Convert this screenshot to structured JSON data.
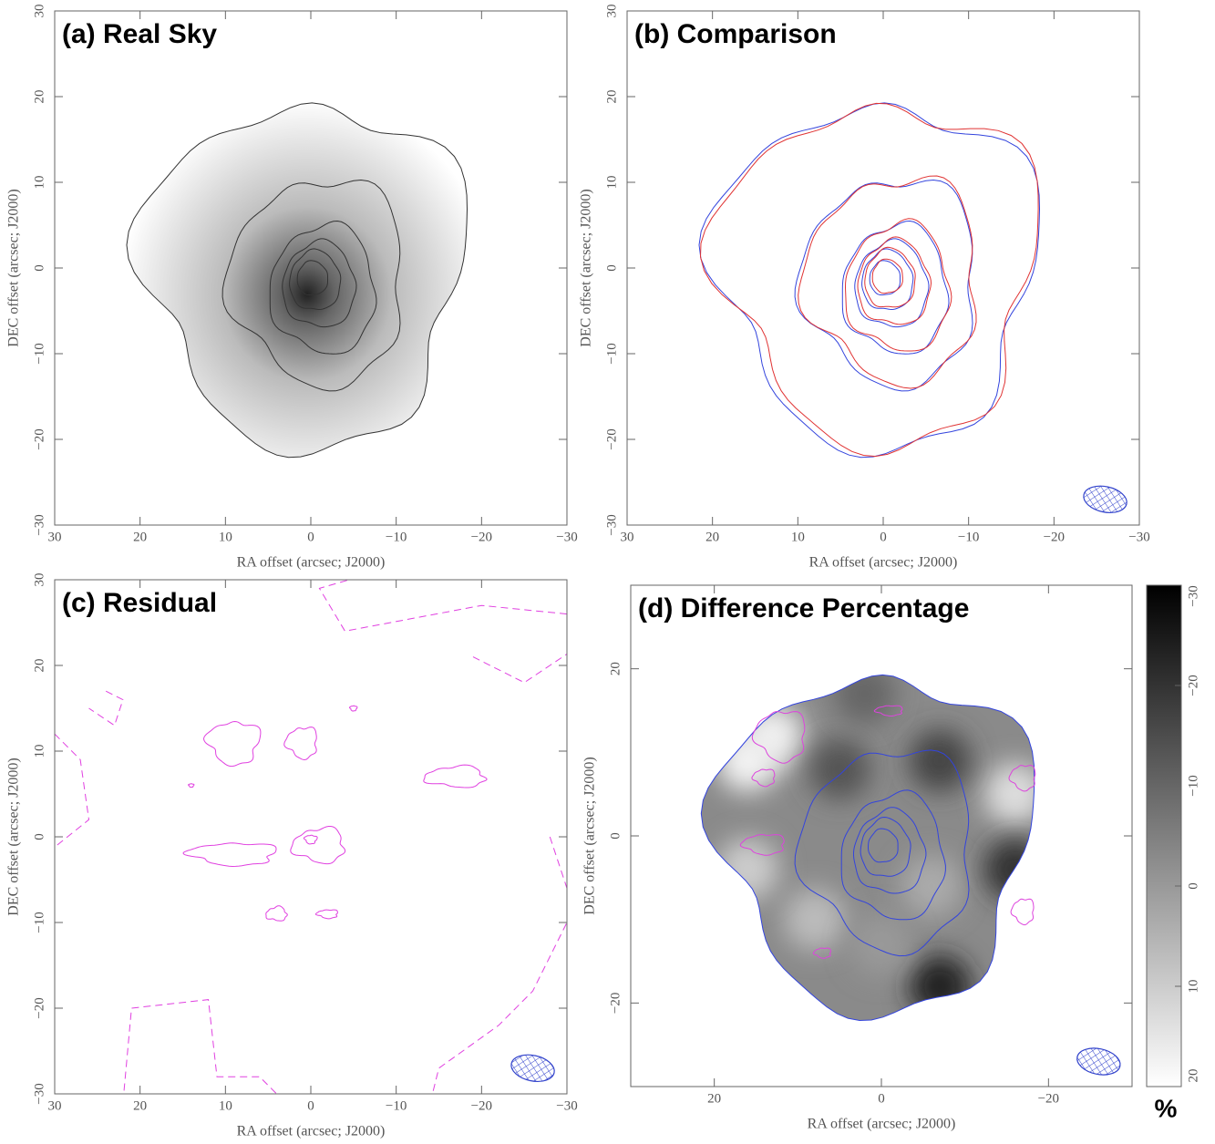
{
  "chart_data": [
    {
      "type": "contour",
      "title": "(a) Real Sky",
      "xlabel": "RA offset (arcsec; J2000)",
      "ylabel": "DEC offset (arcsec; J2000)",
      "xlim": [
        30,
        -30
      ],
      "ylim": [
        -30,
        30
      ],
      "xticks": [
        30,
        20,
        10,
        0,
        {
          "value": -10,
          "label": "−10"
        },
        {
          "value": -20,
          "label": "−20"
        },
        {
          "value": -30,
          "label": "−30"
        }
      ],
      "yticks": [
        {
          "value": -30,
          "label": "−30"
        },
        {
          "value": -20,
          "label": "−20"
        },
        {
          "value": -10,
          "label": "−10"
        },
        0,
        10,
        20,
        30
      ]
    },
    {
      "type": "contour",
      "title": "(b) Comparison",
      "xlabel": "RA offset (arcsec; J2000)",
      "ylabel": "DEC offset (arcsec; J2000)",
      "xlim": [
        30,
        -30
      ],
      "ylim": [
        -30,
        30
      ],
      "xticks": [
        30,
        20,
        10,
        0,
        {
          "value": -10,
          "label": "−10"
        },
        {
          "value": -20,
          "label": "−20"
        },
        {
          "value": -30,
          "label": "−30"
        }
      ],
      "yticks": [
        {
          "value": -30,
          "label": "−30"
        },
        {
          "value": -20,
          "label": "−20"
        },
        {
          "value": -10,
          "label": "−10"
        },
        0,
        10,
        20,
        30
      ]
    },
    {
      "type": "contour",
      "title": "(c) Residual",
      "xlabel": "RA offset (arcsec; J2000)",
      "ylabel": "DEC offset (arcsec; J2000)",
      "xlim": [
        30,
        -30
      ],
      "ylim": [
        -30,
        30
      ],
      "xticks": [
        30,
        20,
        10,
        0,
        {
          "value": -10,
          "label": "−10"
        },
        {
          "value": -20,
          "label": "−20"
        },
        {
          "value": -30,
          "label": "−30"
        }
      ],
      "yticks": [
        {
          "value": -30,
          "label": "−30"
        },
        {
          "value": -20,
          "label": "−20"
        },
        {
          "value": -10,
          "label": "−10"
        },
        0,
        10,
        20,
        30
      ]
    },
    {
      "type": "contour",
      "title": "(d) Difference Percentage",
      "xlabel": "RA offset (arcsec; J2000)",
      "ylabel": "DEC offset (arcsec; J2000)",
      "xlim": [
        30,
        -30
      ],
      "ylim": [
        -30,
        30
      ],
      "xticks": [
        20,
        0,
        {
          "value": -20,
          "label": "−20"
        }
      ],
      "yticks": [
        {
          "value": -20,
          "label": "−20"
        },
        0,
        20
      ],
      "colorbar": {
        "lim": [
          -30,
          20
        ],
        "ticks": [
          {
            "value": -30,
            "label": "−30"
          },
          {
            "value": -20,
            "label": "−20"
          },
          {
            "value": -10,
            "label": "−10"
          },
          0,
          10,
          20
        ],
        "label": "%"
      }
    }
  ]
}
